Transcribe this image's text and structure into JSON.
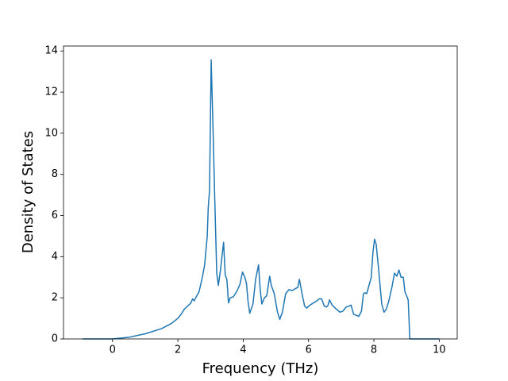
{
  "chart_data": {
    "type": "line",
    "x_label": "Frequency (THz)",
    "y_label": "Density of States",
    "x": [
      -0.92,
      0,
      0.5,
      1,
      1.5,
      1.8,
      2,
      2.1,
      2.2,
      2.3,
      2.4,
      2.45,
      2.5,
      2.58,
      2.65,
      2.75,
      2.82,
      2.9,
      2.93,
      2.97,
      3.02,
      3.08,
      3.13,
      3.19,
      3.24,
      3.3,
      3.4,
      3.45,
      3.5,
      3.55,
      3.6,
      3.7,
      3.8,
      3.9,
      3.98,
      4.05,
      4.1,
      4.15,
      4.2,
      4.3,
      4.38,
      4.47,
      4.52,
      4.57,
      4.65,
      4.72,
      4.81,
      4.86,
      4.95,
      5.05,
      5.12,
      5.2,
      5.3,
      5.4,
      5.5,
      5.6,
      5.67,
      5.72,
      5.8,
      5.88,
      5.94,
      6.05,
      6.15,
      6.25,
      6.33,
      6.4,
      6.48,
      6.55,
      6.6,
      6.64,
      6.72,
      6.85,
      6.96,
      7.05,
      7.15,
      7.25,
      7.3,
      7.38,
      7.46,
      7.54,
      7.62,
      7.68,
      7.73,
      7.78,
      7.85,
      7.92,
      7.97,
      8.02,
      8.07,
      8.15,
      8.24,
      8.31,
      8.38,
      8.45,
      8.55,
      8.63,
      8.7,
      8.77,
      8.83,
      8.9,
      8.95,
      9.05,
      9.1,
      10
    ],
    "series": [
      {
        "color": "#1f77b4",
        "values": [
          0,
          0,
          0.08,
          0.25,
          0.5,
          0.75,
          1.0,
          1.2,
          1.45,
          1.6,
          1.75,
          1.95,
          1.85,
          2.1,
          2.3,
          3.0,
          3.6,
          5.0,
          6.4,
          7.2,
          13.57,
          10.0,
          6.8,
          3.2,
          2.6,
          3.3,
          4.7,
          3.1,
          2.9,
          1.75,
          2.0,
          2.05,
          2.3,
          2.65,
          3.25,
          3.0,
          2.7,
          1.8,
          1.25,
          1.7,
          2.9,
          3.6,
          2.4,
          1.7,
          2.0,
          2.1,
          3.05,
          2.6,
          2.2,
          1.3,
          0.95,
          1.3,
          2.2,
          2.4,
          2.35,
          2.45,
          2.5,
          2.9,
          2.2,
          1.6,
          1.5,
          1.65,
          1.75,
          1.85,
          1.95,
          1.95,
          1.6,
          1.55,
          1.65,
          1.9,
          1.65,
          1.45,
          1.3,
          1.35,
          1.55,
          1.6,
          1.65,
          1.2,
          1.15,
          1.1,
          1.35,
          2.2,
          2.25,
          2.2,
          2.6,
          3.0,
          4.2,
          4.85,
          4.6,
          3.3,
          1.7,
          1.3,
          1.45,
          1.8,
          2.5,
          3.2,
          3.05,
          3.35,
          3.0,
          3.0,
          2.3,
          1.9,
          0,
          0
        ]
      }
    ],
    "xlim": [
      -1.5,
      10.55
    ],
    "ylim": [
      0,
      14.24
    ],
    "xticks": [
      0,
      2,
      4,
      6,
      8,
      10
    ],
    "yticks": [
      0,
      2,
      4,
      6,
      8,
      10,
      12,
      14
    ]
  }
}
